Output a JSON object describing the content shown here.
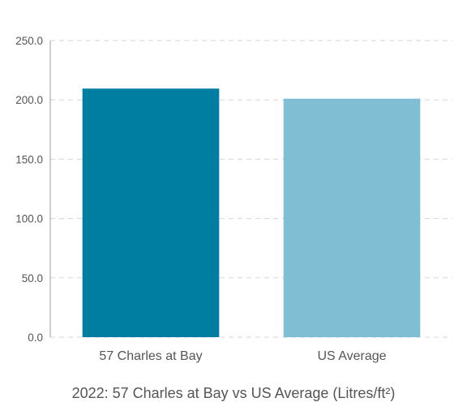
{
  "chart_data": {
    "type": "bar",
    "title": "2022: 57 Charles at Bay vs US Average (Litres/ft²)",
    "xlabel": "",
    "ylabel": "",
    "categories": [
      "57 Charles at Bay",
      "US Average"
    ],
    "values": [
      209.5,
      201.0
    ],
    "colors": [
      "#007ea1",
      "#80bed3"
    ],
    "ylim": [
      0,
      250
    ],
    "yticks": [
      0,
      50,
      100,
      150,
      200,
      250
    ],
    "ytick_labels": [
      "0.0",
      "50.0",
      "100.0",
      "150.0",
      "200.0",
      "250.0"
    ],
    "grid": true,
    "legend": "none"
  }
}
